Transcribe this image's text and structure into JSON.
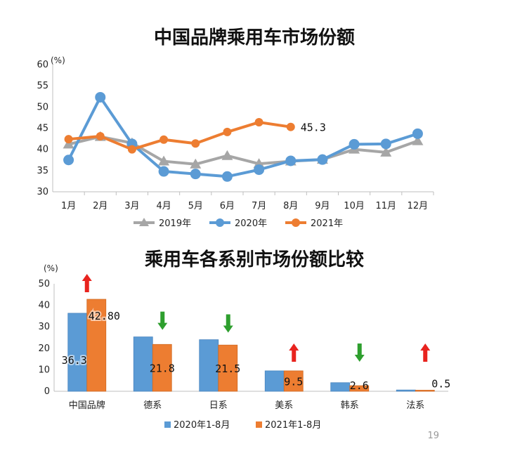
{
  "chart_data": [
    {
      "type": "line",
      "title": "中国品牌乘用车市场份额",
      "unit_label": "(%)",
      "ylim": [
        30,
        60
      ],
      "yticks": [
        30,
        35,
        40,
        45,
        50,
        55,
        60
      ],
      "categories": [
        "1月",
        "2月",
        "3月",
        "4月",
        "5月",
        "6月",
        "7月",
        "8月",
        "9月",
        "10月",
        "11月",
        "12月"
      ],
      "series": [
        {
          "name": "2019年",
          "color": "#a6a6a6",
          "marker": "triangle",
          "values": [
            41.2,
            43.0,
            41.5,
            37.2,
            36.5,
            38.5,
            36.6,
            37.2,
            37.6,
            40.0,
            39.3,
            42.0
          ]
        },
        {
          "name": "2020年",
          "color": "#5b9bd5",
          "marker": "circle",
          "values": [
            37.5,
            52.3,
            41.3,
            34.8,
            34.2,
            33.6,
            35.2,
            37.3,
            37.6,
            41.2,
            41.3,
            43.7
          ]
        },
        {
          "name": "2021年",
          "color": "#ed7d31",
          "marker": "circle",
          "values": [
            42.4,
            43.1,
            40.0,
            42.3,
            41.4,
            44.1,
            46.4,
            45.3,
            null,
            null,
            null,
            null
          ]
        }
      ],
      "annotation": "45.3"
    },
    {
      "type": "bar",
      "title": "乘用车各系别市场份额比较",
      "unit_label": "(%)",
      "ylim": [
        0,
        50
      ],
      "yticks": [
        0,
        10,
        20,
        30,
        40,
        50
      ],
      "categories": [
        "中国品牌",
        "德系",
        "日系",
        "美系",
        "韩系",
        "法系"
      ],
      "series": [
        {
          "name": "2020年1-8月",
          "color": "#5b9bd5",
          "values": [
            36.3,
            25.3,
            24.0,
            9.5,
            4.0,
            0.6
          ]
        },
        {
          "name": "2021年1-8月",
          "color": "#ed7d31",
          "values": [
            42.8,
            21.8,
            21.5,
            9.5,
            2.6,
            0.5
          ]
        }
      ],
      "data_labels": [
        "36.30",
        "42.80",
        "21.8",
        "21.5",
        "9.5",
        "2.6",
        "0.5"
      ],
      "arrows": [
        "up",
        "down",
        "down",
        "up",
        "down",
        "up"
      ],
      "arrow_colors": {
        "up": "#e8231e",
        "down": "#2e9f2e"
      }
    }
  ],
  "page_number": "19"
}
